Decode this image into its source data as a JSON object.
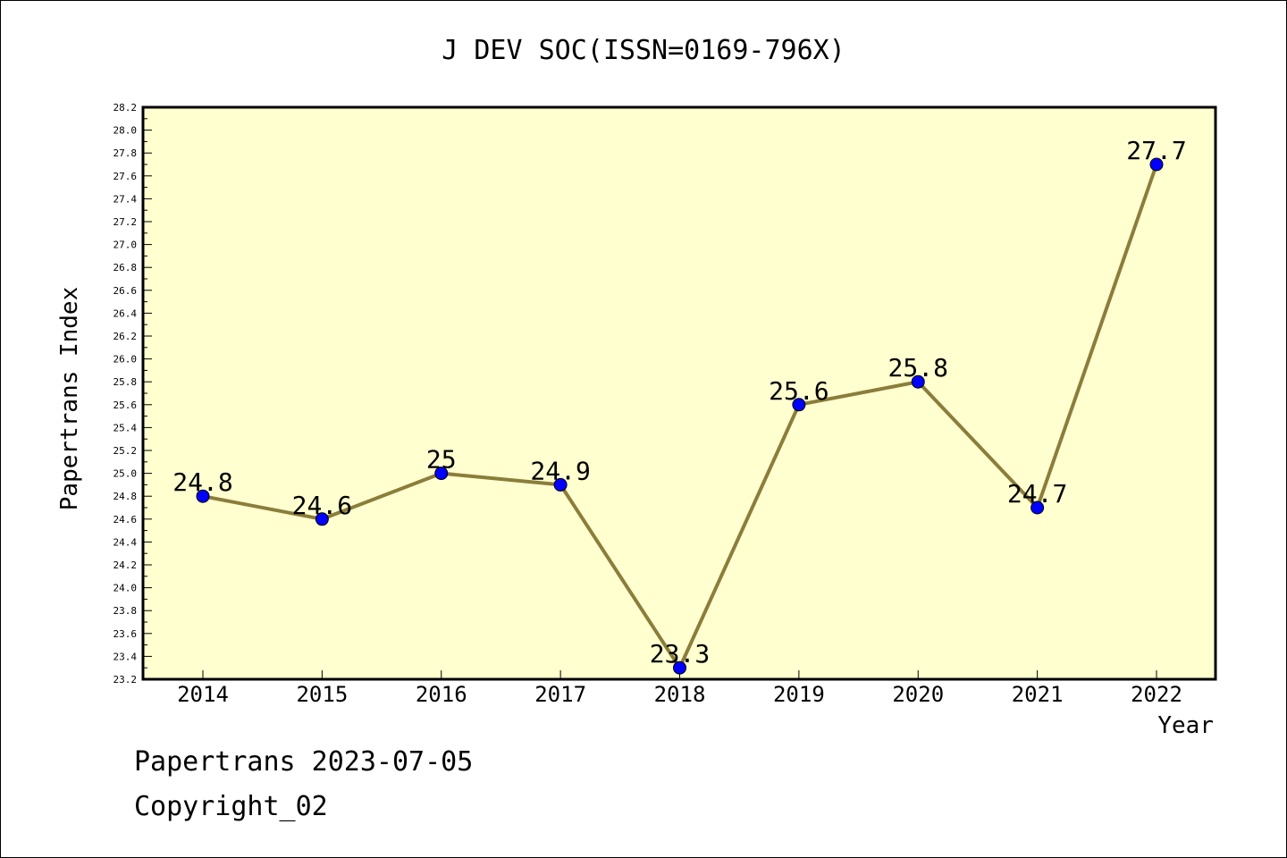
{
  "chart_data": {
    "type": "line",
    "title": "J DEV SOC(ISSN=0169-796X)",
    "xlabel": "Year",
    "ylabel": "Papertrans Index",
    "x": [
      "2014",
      "2015",
      "2016",
      "2017",
      "2018",
      "2019",
      "2020",
      "2021",
      "2022"
    ],
    "series": [
      {
        "values": [
          24.8,
          24.6,
          25.0,
          24.9,
          23.3,
          25.6,
          25.8,
          24.7,
          27.7
        ],
        "labels": [
          "24.8",
          "24.6",
          "25",
          "24.9",
          "23.3",
          "25.6",
          "25.8",
          "24.7",
          "27.7"
        ]
      }
    ],
    "ylim": [
      23.2,
      28.2
    ],
    "ytick_step": 0.2,
    "grid": false,
    "legend": "none",
    "colors": {
      "plot_background": "#ffffd0",
      "line": "#8b7d3a",
      "marker": "#0000ff"
    }
  },
  "footer": {
    "line1": "Papertrans 2023-07-05",
    "line2": "Copyright_02"
  }
}
